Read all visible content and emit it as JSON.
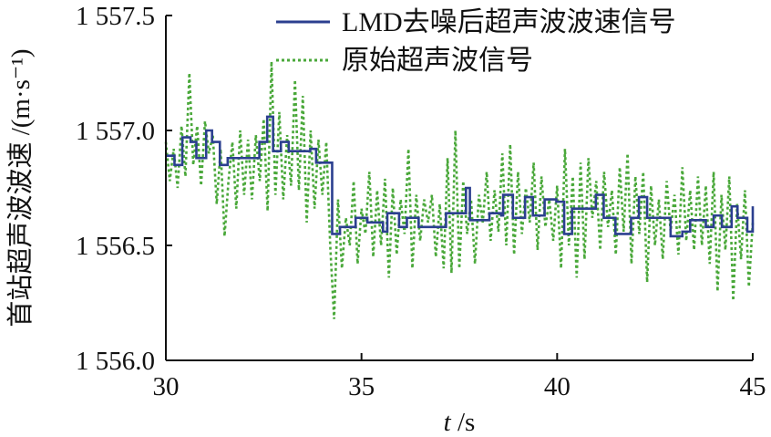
{
  "chart_data": {
    "type": "line",
    "title": "",
    "xlabel": "t /s",
    "xlabel_var": "t",
    "xlabel_unit": " /s",
    "ylabel": "首站超声波波速 /(m·s⁻¹)",
    "xlim": [
      30,
      45
    ],
    "ylim": [
      1556.0,
      1557.5
    ],
    "grid": false,
    "legend_placement": "top-right",
    "x_ticks": [
      30,
      35,
      40,
      45
    ],
    "x_tick_labels": [
      "30",
      "35",
      "40",
      "45"
    ],
    "y_ticks": [
      1556.0,
      1556.5,
      1557.0,
      1557.5
    ],
    "y_tick_labels": [
      "1 556.0",
      "1 556.5",
      "1 557.0",
      "1 557.5"
    ],
    "colors": {
      "denoised": "#2b3f8f",
      "raw": "#4aa83a",
      "axis": "#111111"
    },
    "series": [
      {
        "name": "LMD去噪后超声波波速信号",
        "style": "solid",
        "x": [
          30.02,
          30.22,
          30.42,
          30.63,
          30.78,
          30.93,
          31.03,
          31.18,
          31.38,
          31.58,
          32.13,
          32.39,
          32.59,
          32.74,
          32.94,
          33.14,
          33.69,
          33.84,
          34.1,
          34.25,
          34.45,
          34.75,
          34.85,
          35.15,
          35.55,
          35.66,
          35.96,
          36.16,
          36.46,
          36.96,
          37.16,
          37.57,
          37.67,
          37.77,
          38.17,
          38.27,
          38.57,
          38.62,
          38.87,
          39.18,
          39.38,
          39.68,
          39.98,
          40.18,
          40.38,
          40.79,
          40.99,
          41.19,
          41.49,
          41.89,
          42.09,
          42.3,
          42.8,
          42.9,
          43.2,
          43.4,
          43.8,
          44.0,
          44.21,
          44.46,
          44.61,
          44.86,
          45.0
        ],
        "y": [
          1556.89,
          1556.85,
          1556.97,
          1556.95,
          1556.88,
          1556.88,
          1557.0,
          1556.95,
          1556.85,
          1556.88,
          1556.88,
          1556.95,
          1557.06,
          1556.91,
          1556.95,
          1556.91,
          1556.92,
          1556.86,
          1556.86,
          1556.55,
          1556.58,
          1556.58,
          1556.62,
          1556.6,
          1556.56,
          1556.64,
          1556.58,
          1556.62,
          1556.58,
          1556.58,
          1556.64,
          1556.64,
          1556.75,
          1556.61,
          1556.61,
          1556.64,
          1556.63,
          1556.72,
          1556.62,
          1556.71,
          1556.63,
          1556.7,
          1556.69,
          1556.55,
          1556.66,
          1556.66,
          1556.72,
          1556.62,
          1556.55,
          1556.62,
          1556.71,
          1556.62,
          1556.62,
          1556.54,
          1556.56,
          1556.61,
          1556.58,
          1556.63,
          1556.58,
          1556.67,
          1556.62,
          1556.56,
          1556.67
        ]
      },
      {
        "name": "原始超声波信号",
        "style": "dotted",
        "x_range": [
          30,
          45
        ],
        "y": [
          1556.95,
          1556.78,
          1556.92,
          1556.75,
          1557.02,
          1556.8,
          1557.25,
          1556.85,
          1557.02,
          1556.76,
          1557.04,
          1556.9,
          1556.98,
          1556.68,
          1556.92,
          1556.54,
          1556.78,
          1556.95,
          1556.66,
          1557.0,
          1556.72,
          1556.96,
          1556.7,
          1556.98,
          1556.78,
          1557.05,
          1556.65,
          1557.3,
          1556.72,
          1557.08,
          1556.7,
          1556.98,
          1556.76,
          1557.22,
          1556.74,
          1557.15,
          1556.6,
          1557.0,
          1556.66,
          1556.96,
          1556.72,
          1556.95,
          1556.5,
          1556.18,
          1556.7,
          1556.4,
          1556.62,
          1556.5,
          1556.78,
          1556.42,
          1556.66,
          1556.55,
          1556.82,
          1556.45,
          1556.74,
          1556.5,
          1556.79,
          1556.36,
          1556.75,
          1556.46,
          1556.7,
          1556.55,
          1556.92,
          1556.4,
          1556.72,
          1556.52,
          1556.7,
          1556.6,
          1556.72,
          1556.45,
          1556.68,
          1556.4,
          1556.88,
          1556.38,
          1557.0,
          1556.4,
          1556.78,
          1556.55,
          1556.7,
          1556.42,
          1556.72,
          1556.6,
          1556.82,
          1556.52,
          1556.74,
          1556.56,
          1556.9,
          1556.5,
          1556.94,
          1556.46,
          1556.82,
          1556.55,
          1556.75,
          1556.6,
          1556.86,
          1556.48,
          1556.8,
          1556.58,
          1556.7,
          1556.52,
          1556.76,
          1556.4,
          1556.92,
          1556.5,
          1556.8,
          1556.36,
          1556.86,
          1556.44,
          1556.88,
          1556.62,
          1556.78,
          1556.48,
          1556.82,
          1556.58,
          1556.74,
          1556.46,
          1556.84,
          1556.56,
          1556.9,
          1556.42,
          1556.8,
          1556.55,
          1556.82,
          1556.34,
          1556.76,
          1556.5,
          1556.7,
          1556.44,
          1556.78,
          1556.56,
          1556.72,
          1556.46,
          1556.84,
          1556.52,
          1556.74,
          1556.48,
          1556.8,
          1556.5,
          1556.76,
          1556.42,
          1556.82,
          1556.3,
          1556.72,
          1556.48,
          1556.8,
          1556.26,
          1556.68,
          1556.44,
          1556.74,
          1556.32,
          1556.6
        ]
      }
    ]
  }
}
